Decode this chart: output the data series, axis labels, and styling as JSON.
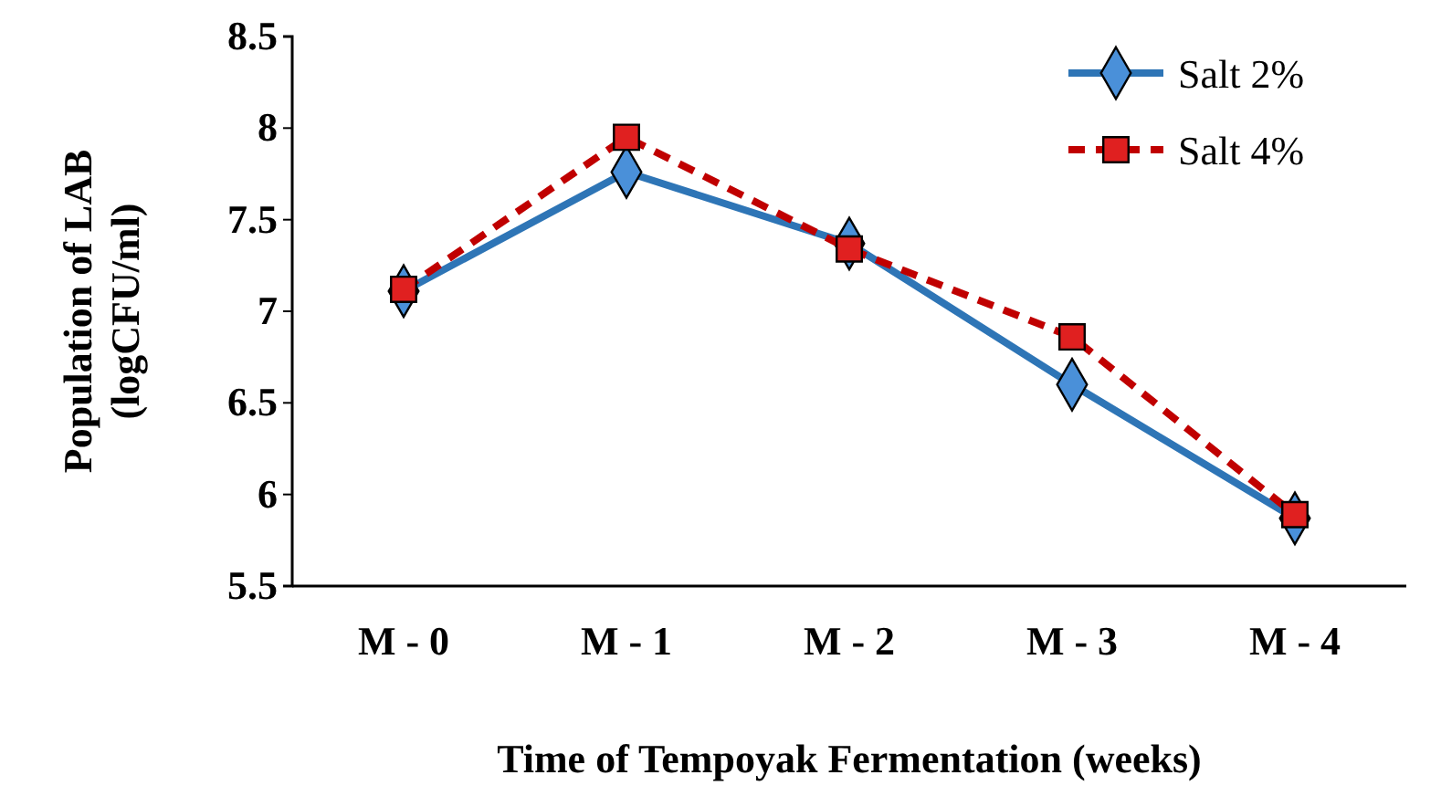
{
  "chart_data": {
    "type": "line",
    "xlabel": "Time of Tempoyak Fermentation (weeks)",
    "ylabel": "Population of LAB (logCFU/ml)",
    "categories": [
      "M - 0",
      "M - 1",
      "M - 2",
      "M - 3",
      "M - 4"
    ],
    "series": [
      {
        "name": "Salt 2%",
        "color": "#2e75b6",
        "marker": "diamond",
        "line_style": "solid",
        "values": [
          7.11,
          7.76,
          7.37,
          6.6,
          5.87
        ]
      },
      {
        "name": "Salt 4%",
        "color": "#c00000",
        "marker": "square",
        "line_style": "dashed",
        "values": [
          7.12,
          7.95,
          7.34,
          6.86,
          5.89
        ]
      }
    ],
    "ylim": [
      5.5,
      8.5
    ],
    "yticks": [
      5.5,
      6,
      6.5,
      7,
      7.5,
      8,
      8.5
    ],
    "grid": false,
    "legend": "top right"
  }
}
